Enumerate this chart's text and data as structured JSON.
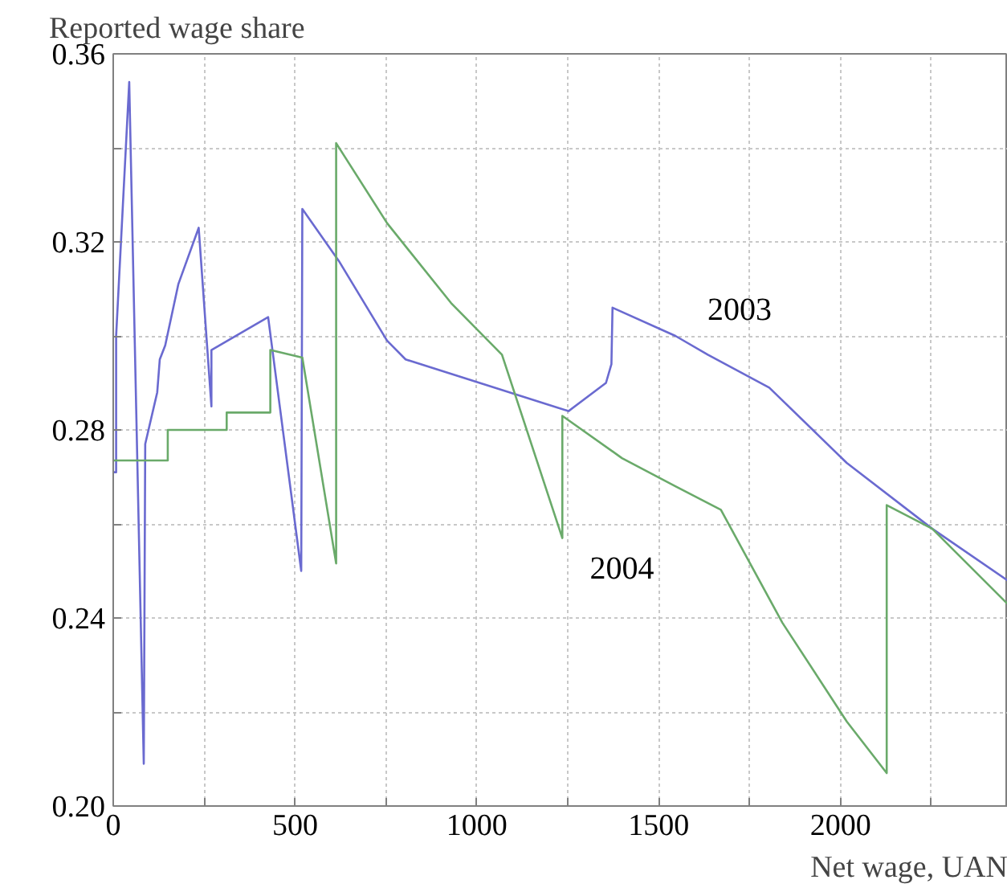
{
  "chart_data": {
    "type": "line",
    "ylabel": "Reported wage share",
    "xlabel": "Net wage, UAN",
    "xlim": [
      0,
      2460
    ],
    "ylim": [
      0.2,
      0.36
    ],
    "xticks": [
      0,
      {
        "value": 250,
        "label": null
      },
      500,
      {
        "value": 750,
        "label": null
      },
      1000,
      {
        "value": 1250,
        "label": null
      },
      1500,
      {
        "value": 1750,
        "label": null
      },
      2000,
      {
        "value": 2250,
        "label": null
      }
    ],
    "yticks": [
      {
        "value": 0.2,
        "label": "0.20"
      },
      {
        "value": 0.22,
        "label": null
      },
      {
        "value": 0.24,
        "label": "0.24"
      },
      {
        "value": 0.26,
        "label": null
      },
      {
        "value": 0.28,
        "label": "0.28"
      },
      {
        "value": 0.3,
        "label": null
      },
      {
        "value": 0.32,
        "label": "0.32"
      },
      {
        "value": 0.34,
        "label": null
      },
      {
        "value": 0.36,
        "label": "0.36"
      }
    ],
    "grid": true,
    "line_style": "solid",
    "series": [
      {
        "name": "2003",
        "color": "#6a6ad0",
        "x": [
          0,
          8,
          8,
          44,
          84,
          88,
          121,
          128,
          143,
          179,
          235,
          270,
          270,
          426,
          517,
          520,
          620,
          753,
          804,
          1252,
          1355,
          1370,
          1373,
          1546,
          1635,
          1804,
          2017,
          2252,
          2459
        ],
        "values": [
          0.271,
          0.271,
          0.3,
          0.354,
          0.209,
          0.277,
          0.288,
          0.295,
          0.298,
          0.311,
          0.323,
          0.285,
          0.297,
          0.304,
          0.25,
          0.327,
          0.316,
          0.299,
          0.295,
          0.284,
          0.29,
          0.294,
          0.306,
          0.3,
          0.296,
          0.289,
          0.273,
          0.259,
          0.248
        ]
      },
      {
        "name": "2004",
        "color": "#6aaa6a",
        "x": [
          0,
          150,
          150,
          312,
          312,
          432,
          432,
          520,
          613,
          613,
          753,
          929,
          1069,
          1235,
          1235,
          1399,
          1546,
          1671,
          1840,
          2017,
          2127,
          2127,
          2252,
          2459
        ],
        "values": [
          0.2735,
          0.2735,
          0.28,
          0.28,
          0.2837,
          0.2837,
          0.297,
          0.2954,
          0.2516,
          0.341,
          0.324,
          0.307,
          0.296,
          0.257,
          0.283,
          0.274,
          0.268,
          0.263,
          0.239,
          0.218,
          0.207,
          0.264,
          0.259,
          0.243
        ]
      }
    ],
    "legend": false
  }
}
